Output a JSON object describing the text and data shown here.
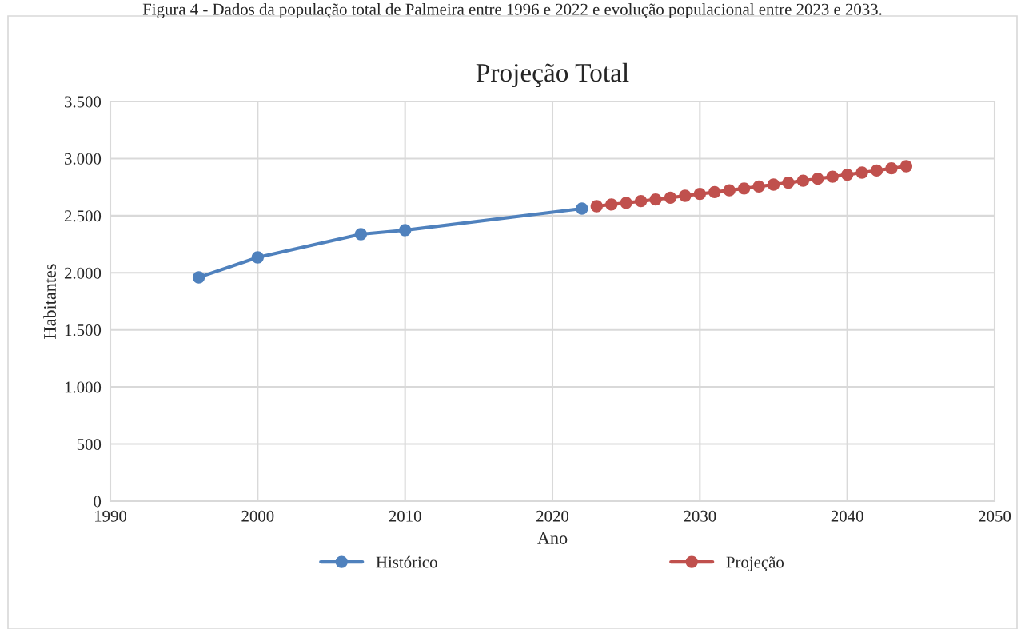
{
  "chart_data": {
    "type": "line",
    "title": "Projeção Total",
    "xlabel": "Ano",
    "ylabel": "Habitantes",
    "annotations": [
      "Figura 4 - Dados da população total de Palmeira entre 1996 e 2022 e evolução populacional entre 2023 e 2033."
    ],
    "series": [
      {
        "name": "Histórico",
        "color": "#4f81bd",
        "x": [
          1996,
          2000,
          2007,
          2010,
          2022
        ],
        "values": [
          1960,
          2135,
          2338,
          2373,
          2562
        ]
      },
      {
        "name": "Projeção",
        "color": "#c0504d",
        "x": [
          2023,
          2024,
          2025,
          2026,
          2027,
          2028,
          2029,
          2030,
          2031,
          2032,
          2033,
          2034,
          2035,
          2036,
          2037,
          2038,
          2039,
          2040,
          2041,
          2042,
          2043,
          2044
        ],
        "values": [
          2583,
          2598,
          2612,
          2627,
          2642,
          2657,
          2674,
          2690,
          2706,
          2722,
          2738,
          2755,
          2772,
          2789,
          2806,
          2823,
          2841,
          2859,
          2877,
          2895,
          2914,
          2933
        ]
      }
    ],
    "xlim": [
      1990,
      2050
    ],
    "xticks": [
      1990,
      2000,
      2010,
      2020,
      2030,
      2040,
      2050
    ],
    "ylim": [
      0,
      3500
    ],
    "yticks": [
      {
        "value": 0,
        "label": "0"
      },
      {
        "value": 500,
        "label": "500"
      },
      {
        "value": 1000,
        "label": "1.000"
      },
      {
        "value": 1500,
        "label": "1.500"
      },
      {
        "value": 2000,
        "label": "2.000"
      },
      {
        "value": 2500,
        "label": "2.500"
      },
      {
        "value": 3000,
        "label": "3.000"
      },
      {
        "value": 3500,
        "label": "3.500"
      }
    ],
    "grid": true,
    "legend": "bottom",
    "marker": "circle",
    "line_style": "solid"
  }
}
